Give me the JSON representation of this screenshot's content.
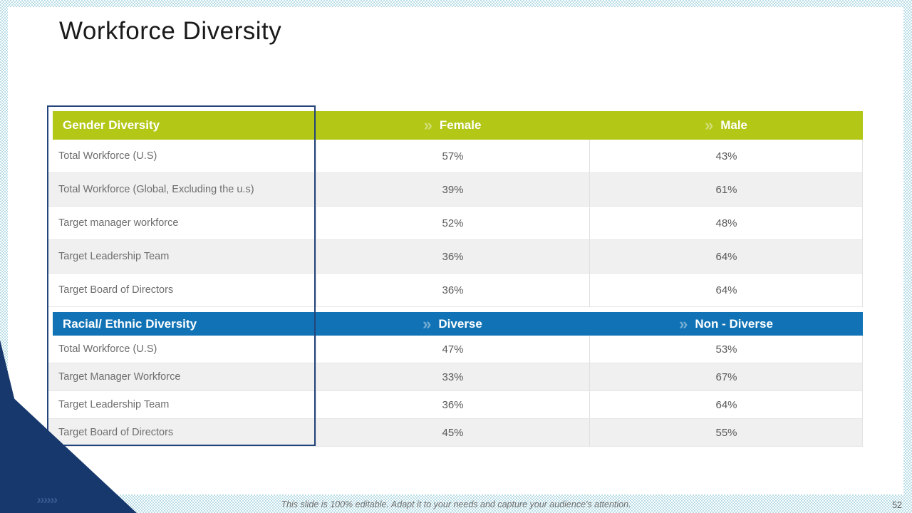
{
  "slide": {
    "title": "Workforce Diversity",
    "footer": "This slide is 100% editable. Adapt it to your needs and capture your audience's attention.",
    "page_number": "52"
  },
  "icons": {
    "header_chevron": "»",
    "corner_chevrons": "››››››"
  },
  "colors": {
    "gender_header_green": "#b2c716",
    "racial_header_blue": "#1173b5",
    "corner_navy": "#17386d",
    "column_box_border": "#23437b",
    "alt_row_gray": "#f0f0f0",
    "pattern_blue": "#b9dde6"
  },
  "chart_data": [
    {
      "type": "table",
      "title": "Gender Diversity",
      "columns": [
        "Gender Diversity",
        "Female",
        "Male"
      ],
      "rows": [
        [
          "Total Workforce (U.S)",
          "57%",
          "43%"
        ],
        [
          "Total Workforce (Global, Excluding the u.s)",
          "39%",
          "61%"
        ],
        [
          "Target manager workforce",
          "52%",
          "48%"
        ],
        [
          "Target Leadership Team",
          "36%",
          "64%"
        ],
        [
          "Target Board of Directors",
          "36%",
          "64%"
        ]
      ]
    },
    {
      "type": "table",
      "title": "Racial/ Ethnic Diversity",
      "columns": [
        "Racial/ Ethnic Diversity",
        "Diverse",
        "Non - Diverse"
      ],
      "rows": [
        [
          "Total Workforce (U.S)",
          "47%",
          "53%"
        ],
        [
          "Target Manager Workforce",
          "33%",
          "67%"
        ],
        [
          "Target Leadership Team",
          "36%",
          "64%"
        ],
        [
          "Target Board of Directors",
          "45%",
          "55%"
        ]
      ]
    }
  ],
  "gender_table": {
    "header": {
      "label": "Gender Diversity",
      "col1": "Female",
      "col2": "Male"
    },
    "rows": [
      {
        "label": "Total Workforce (U.S)",
        "col1": "57%",
        "col2": "43%"
      },
      {
        "label": "Total Workforce (Global, Excluding the u.s)",
        "col1": "39%",
        "col2": "61%"
      },
      {
        "label": "Target manager workforce",
        "col1": "52%",
        "col2": "48%"
      },
      {
        "label": "Target Leadership Team",
        "col1": "36%",
        "col2": "64%"
      },
      {
        "label": "Target Board of Directors",
        "col1": "36%",
        "col2": "64%"
      }
    ]
  },
  "racial_table": {
    "header": {
      "label": "Racial/ Ethnic Diversity",
      "col1": "Diverse",
      "col2": "Non - Diverse"
    },
    "rows": [
      {
        "label": "Total Workforce (U.S)",
        "col1": "47%",
        "col2": "53%"
      },
      {
        "label": "Target Manager Workforce",
        "col1": "33%",
        "col2": "67%"
      },
      {
        "label": "Target Leadership Team",
        "col1": "36%",
        "col2": "64%"
      },
      {
        "label": "Target Board of Directors",
        "col1": "45%",
        "col2": "55%"
      }
    ]
  }
}
